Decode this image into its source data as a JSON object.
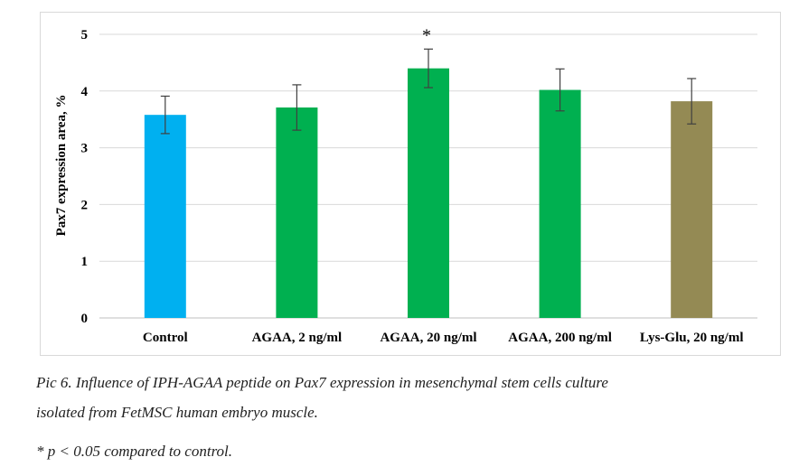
{
  "chart_data": {
    "type": "bar",
    "categories": [
      "Control",
      "AGAA, 2 ng/ml",
      "AGAA, 20 ng/ml",
      "AGAA, 200 ng/ml",
      "Lys-Glu, 20 ng/ml"
    ],
    "values": [
      3.58,
      3.71,
      4.4,
      4.02,
      3.82
    ],
    "error": [
      0.33,
      0.4,
      0.34,
      0.37,
      0.4
    ],
    "colors": [
      "#00b0f0",
      "#00b050",
      "#00b050",
      "#00b050",
      "#948a54"
    ],
    "significance": [
      "",
      "",
      "*",
      "",
      ""
    ],
    "ylabel": "Pax7 expression area, %",
    "ylim": [
      0,
      5
    ],
    "yticks": [
      "0",
      "1",
      "2",
      "3",
      "4",
      "5"
    ],
    "grid": true,
    "legend": "none"
  },
  "caption": {
    "line1": "Pic 6. Influence of IPH-AGAA peptide on Pax7 expression in mesenchymal stem cells culture",
    "line2": "isolated from FetMSC human embryo muscle.",
    "footnote": "* p < 0.05 compared to control."
  }
}
